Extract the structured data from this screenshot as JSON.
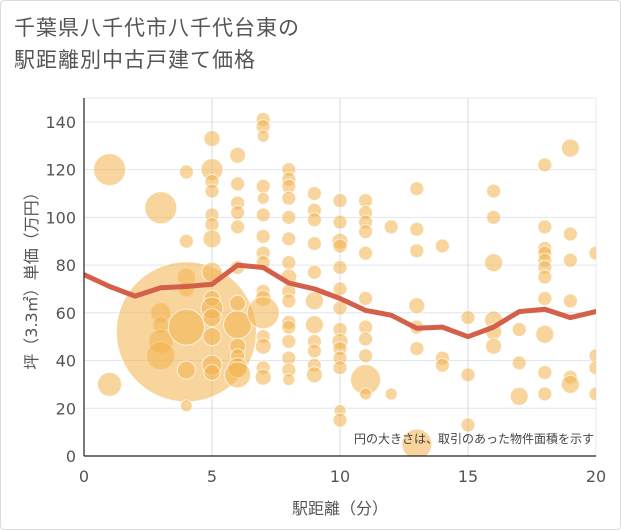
{
  "title_line1": "千葉県八千代市八千代台東の",
  "title_line2": "駅距離別中古戸建て価格",
  "chart_data": {
    "type": "scatter",
    "title": "千葉県八千代市八千代台東の駅距離別中古戸建て価格",
    "xlabel": "駅距離（分）",
    "ylabel": "坪（3.3㎡）単価（万円）",
    "xlim": [
      0,
      20
    ],
    "ylim": [
      0,
      150
    ],
    "xticks": [
      0,
      5,
      10,
      15,
      20
    ],
    "yticks": [
      0,
      20,
      40,
      60,
      80,
      100,
      120,
      140
    ],
    "grid": true,
    "note": "円の大きさは、取引のあった物件面積を示す",
    "bubble_color": "#f2b24c",
    "line_color": "#d4604a",
    "bubbles": [
      {
        "x": 1,
        "y": 120,
        "s": 16
      },
      {
        "x": 1,
        "y": 30,
        "s": 12
      },
      {
        "x": 3,
        "y": 104,
        "s": 16
      },
      {
        "x": 3,
        "y": 60,
        "s": 10
      },
      {
        "x": 3,
        "y": 55,
        "s": 8
      },
      {
        "x": 3,
        "y": 48,
        "s": 12
      },
      {
        "x": 3,
        "y": 42,
        "s": 14
      },
      {
        "x": 4,
        "y": 119,
        "s": 7
      },
      {
        "x": 4,
        "y": 90,
        "s": 7
      },
      {
        "x": 4,
        "y": 75,
        "s": 9
      },
      {
        "x": 4,
        "y": 70,
        "s": 8
      },
      {
        "x": 4,
        "y": 52,
        "s": 70
      },
      {
        "x": 4,
        "y": 54,
        "s": 18
      },
      {
        "x": 4,
        "y": 36,
        "s": 9
      },
      {
        "x": 4,
        "y": 21,
        "s": 6
      },
      {
        "x": 5,
        "y": 133,
        "s": 8
      },
      {
        "x": 5,
        "y": 120,
        "s": 11
      },
      {
        "x": 5,
        "y": 115,
        "s": 7
      },
      {
        "x": 5,
        "y": 111,
        "s": 7
      },
      {
        "x": 5,
        "y": 101,
        "s": 7
      },
      {
        "x": 5,
        "y": 97,
        "s": 7
      },
      {
        "x": 5,
        "y": 91,
        "s": 9
      },
      {
        "x": 5,
        "y": 77,
        "s": 10
      },
      {
        "x": 5,
        "y": 66,
        "s": 8
      },
      {
        "x": 5,
        "y": 62,
        "s": 11
      },
      {
        "x": 5,
        "y": 58,
        "s": 9
      },
      {
        "x": 5,
        "y": 50,
        "s": 9
      },
      {
        "x": 5,
        "y": 38,
        "s": 10
      },
      {
        "x": 5,
        "y": 35,
        "s": 8
      },
      {
        "x": 6,
        "y": 126,
        "s": 8
      },
      {
        "x": 6,
        "y": 114,
        "s": 7
      },
      {
        "x": 6,
        "y": 106,
        "s": 7
      },
      {
        "x": 6,
        "y": 102,
        "s": 7
      },
      {
        "x": 6,
        "y": 96,
        "s": 7
      },
      {
        "x": 6,
        "y": 79,
        "s": 7
      },
      {
        "x": 6,
        "y": 64,
        "s": 8
      },
      {
        "x": 6,
        "y": 55,
        "s": 14
      },
      {
        "x": 6,
        "y": 46,
        "s": 8
      },
      {
        "x": 6,
        "y": 42,
        "s": 7
      },
      {
        "x": 6,
        "y": 37,
        "s": 10
      },
      {
        "x": 6,
        "y": 34,
        "s": 13
      },
      {
        "x": 7,
        "y": 141,
        "s": 7
      },
      {
        "x": 7,
        "y": 138,
        "s": 7
      },
      {
        "x": 7,
        "y": 134,
        "s": 6
      },
      {
        "x": 7,
        "y": 113,
        "s": 7
      },
      {
        "x": 7,
        "y": 108,
        "s": 6
      },
      {
        "x": 7,
        "y": 101,
        "s": 7
      },
      {
        "x": 7,
        "y": 92,
        "s": 7
      },
      {
        "x": 7,
        "y": 85,
        "s": 7
      },
      {
        "x": 7,
        "y": 81,
        "s": 7
      },
      {
        "x": 7,
        "y": 69,
        "s": 7
      },
      {
        "x": 7,
        "y": 66,
        "s": 8
      },
      {
        "x": 7,
        "y": 60,
        "s": 16
      },
      {
        "x": 7,
        "y": 50,
        "s": 7
      },
      {
        "x": 7,
        "y": 46,
        "s": 8
      },
      {
        "x": 7,
        "y": 37,
        "s": 7
      },
      {
        "x": 7,
        "y": 33,
        "s": 8
      },
      {
        "x": 8,
        "y": 120,
        "s": 7
      },
      {
        "x": 8,
        "y": 116,
        "s": 7
      },
      {
        "x": 8,
        "y": 113,
        "s": 7
      },
      {
        "x": 8,
        "y": 108,
        "s": 7
      },
      {
        "x": 8,
        "y": 100,
        "s": 7
      },
      {
        "x": 8,
        "y": 91,
        "s": 7
      },
      {
        "x": 8,
        "y": 81,
        "s": 7
      },
      {
        "x": 8,
        "y": 75,
        "s": 8
      },
      {
        "x": 8,
        "y": 69,
        "s": 7
      },
      {
        "x": 8,
        "y": 65,
        "s": 7
      },
      {
        "x": 8,
        "y": 56,
        "s": 7
      },
      {
        "x": 8,
        "y": 54,
        "s": 7
      },
      {
        "x": 8,
        "y": 48,
        "s": 7
      },
      {
        "x": 8,
        "y": 41,
        "s": 7
      },
      {
        "x": 8,
        "y": 36,
        "s": 7
      },
      {
        "x": 8,
        "y": 32,
        "s": 6
      },
      {
        "x": 9,
        "y": 110,
        "s": 7
      },
      {
        "x": 9,
        "y": 103,
        "s": 7
      },
      {
        "x": 9,
        "y": 99,
        "s": 7
      },
      {
        "x": 9,
        "y": 89,
        "s": 7
      },
      {
        "x": 9,
        "y": 77,
        "s": 7
      },
      {
        "x": 9,
        "y": 65,
        "s": 9
      },
      {
        "x": 9,
        "y": 55,
        "s": 9
      },
      {
        "x": 9,
        "y": 48,
        "s": 7
      },
      {
        "x": 9,
        "y": 44,
        "s": 7
      },
      {
        "x": 9,
        "y": 38,
        "s": 7
      },
      {
        "x": 9,
        "y": 34,
        "s": 8
      },
      {
        "x": 10,
        "y": 107,
        "s": 7
      },
      {
        "x": 10,
        "y": 98,
        "s": 7
      },
      {
        "x": 10,
        "y": 90,
        "s": 8
      },
      {
        "x": 10,
        "y": 88,
        "s": 7
      },
      {
        "x": 10,
        "y": 79,
        "s": 7
      },
      {
        "x": 10,
        "y": 70,
        "s": 7
      },
      {
        "x": 10,
        "y": 62,
        "s": 7
      },
      {
        "x": 10,
        "y": 53,
        "s": 7
      },
      {
        "x": 10,
        "y": 48,
        "s": 8
      },
      {
        "x": 10,
        "y": 45,
        "s": 7
      },
      {
        "x": 10,
        "y": 41,
        "s": 7
      },
      {
        "x": 10,
        "y": 37,
        "s": 7
      },
      {
        "x": 10,
        "y": 19,
        "s": 6
      },
      {
        "x": 10,
        "y": 15,
        "s": 7
      },
      {
        "x": 11,
        "y": 107,
        "s": 7
      },
      {
        "x": 11,
        "y": 102,
        "s": 7
      },
      {
        "x": 11,
        "y": 98,
        "s": 7
      },
      {
        "x": 11,
        "y": 94,
        "s": 7
      },
      {
        "x": 11,
        "y": 85,
        "s": 7
      },
      {
        "x": 11,
        "y": 66,
        "s": 7
      },
      {
        "x": 11,
        "y": 54,
        "s": 7
      },
      {
        "x": 11,
        "y": 49,
        "s": 7
      },
      {
        "x": 11,
        "y": 42,
        "s": 7
      },
      {
        "x": 11,
        "y": 32,
        "s": 15
      },
      {
        "x": 11,
        "y": 26,
        "s": 6
      },
      {
        "x": 12,
        "y": 96,
        "s": 7
      },
      {
        "x": 12,
        "y": 26,
        "s": 6
      },
      {
        "x": 13,
        "y": 112,
        "s": 7
      },
      {
        "x": 13,
        "y": 95,
        "s": 7
      },
      {
        "x": 13,
        "y": 86,
        "s": 7
      },
      {
        "x": 13,
        "y": 63,
        "s": 8
      },
      {
        "x": 13,
        "y": 54,
        "s": 7
      },
      {
        "x": 13,
        "y": 45,
        "s": 7
      },
      {
        "x": 13,
        "y": 5,
        "s": 15
      },
      {
        "x": 14,
        "y": 88,
        "s": 7
      },
      {
        "x": 14,
        "y": 41,
        "s": 7
      },
      {
        "x": 14,
        "y": 38,
        "s": 7
      },
      {
        "x": 15,
        "y": 58,
        "s": 7
      },
      {
        "x": 15,
        "y": 34,
        "s": 7
      },
      {
        "x": 15,
        "y": 13,
        "s": 7
      },
      {
        "x": 16,
        "y": 111,
        "s": 7
      },
      {
        "x": 16,
        "y": 100,
        "s": 7
      },
      {
        "x": 16,
        "y": 81,
        "s": 9
      },
      {
        "x": 16,
        "y": 57,
        "s": 9
      },
      {
        "x": 16,
        "y": 52,
        "s": 8
      },
      {
        "x": 16,
        "y": 46,
        "s": 8
      },
      {
        "x": 17,
        "y": 53,
        "s": 7
      },
      {
        "x": 17,
        "y": 39,
        "s": 7
      },
      {
        "x": 17,
        "y": 25,
        "s": 9
      },
      {
        "x": 18,
        "y": 122,
        "s": 7
      },
      {
        "x": 18,
        "y": 96,
        "s": 7
      },
      {
        "x": 18,
        "y": 87,
        "s": 7
      },
      {
        "x": 18,
        "y": 85,
        "s": 7
      },
      {
        "x": 18,
        "y": 82,
        "s": 7
      },
      {
        "x": 18,
        "y": 79,
        "s": 7
      },
      {
        "x": 18,
        "y": 75,
        "s": 7
      },
      {
        "x": 18,
        "y": 66,
        "s": 7
      },
      {
        "x": 18,
        "y": 51,
        "s": 9
      },
      {
        "x": 18,
        "y": 35,
        "s": 7
      },
      {
        "x": 18,
        "y": 26,
        "s": 7
      },
      {
        "x": 19,
        "y": 129,
        "s": 9
      },
      {
        "x": 19,
        "y": 93,
        "s": 7
      },
      {
        "x": 19,
        "y": 82,
        "s": 7
      },
      {
        "x": 19,
        "y": 65,
        "s": 7
      },
      {
        "x": 19,
        "y": 33,
        "s": 7
      },
      {
        "x": 19,
        "y": 30,
        "s": 9
      },
      {
        "x": 20,
        "y": 85,
        "s": 7
      },
      {
        "x": 20,
        "y": 42,
        "s": 7
      },
      {
        "x": 20,
        "y": 37,
        "s": 7
      },
      {
        "x": 20,
        "y": 26,
        "s": 7
      }
    ],
    "trend": [
      {
        "x": 0,
        "y": 76
      },
      {
        "x": 1,
        "y": 71
      },
      {
        "x": 2,
        "y": 67
      },
      {
        "x": 3,
        "y": 70.5
      },
      {
        "x": 4,
        "y": 71
      },
      {
        "x": 5,
        "y": 72
      },
      {
        "x": 6,
        "y": 80
      },
      {
        "x": 7,
        "y": 79
      },
      {
        "x": 8,
        "y": 72.5
      },
      {
        "x": 9,
        "y": 70
      },
      {
        "x": 10,
        "y": 66
      },
      {
        "x": 11,
        "y": 61
      },
      {
        "x": 12,
        "y": 59
      },
      {
        "x": 13,
        "y": 53.5
      },
      {
        "x": 14,
        "y": 54
      },
      {
        "x": 15,
        "y": 50
      },
      {
        "x": 16,
        "y": 54
      },
      {
        "x": 17,
        "y": 60.5
      },
      {
        "x": 18,
        "y": 61.5
      },
      {
        "x": 19,
        "y": 58
      },
      {
        "x": 20,
        "y": 60.5
      }
    ]
  }
}
